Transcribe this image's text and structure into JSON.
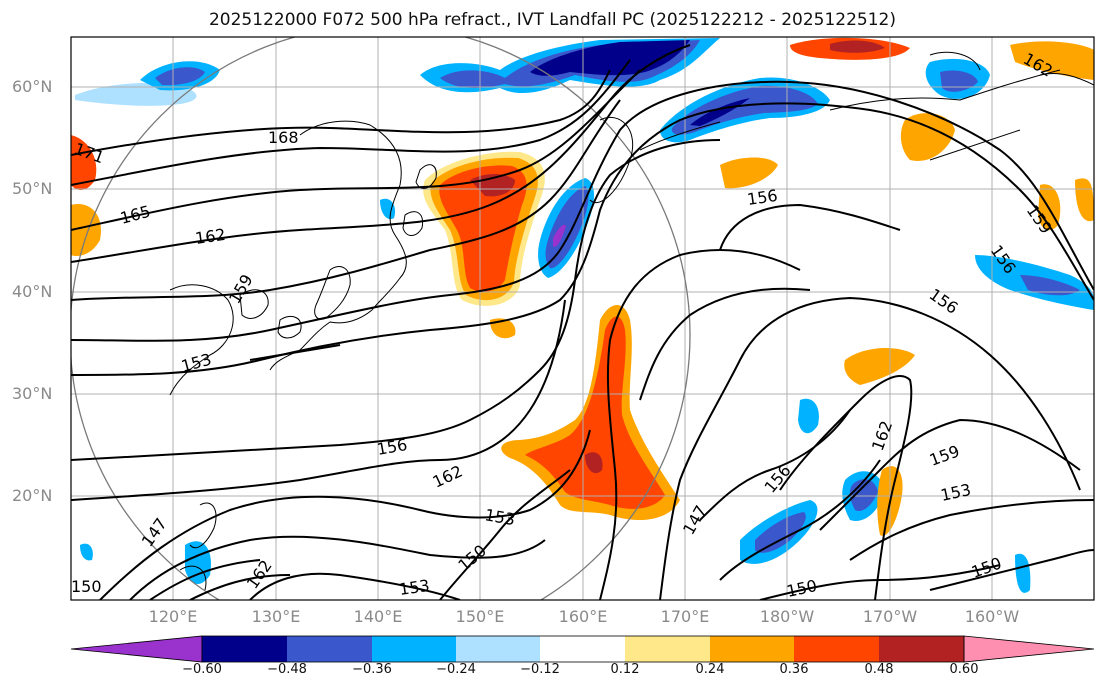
{
  "title": "2025122000 F072 500 hPa refract., IVT Landfall PC (2025122212 - 2025122512)",
  "lat_labels": [
    "60°N",
    "50°N",
    "40°N",
    "30°N",
    "20°N"
  ],
  "lon_labels": [
    "120°E",
    "130°E",
    "140°E",
    "150°E",
    "160°E",
    "170°E",
    "180°W",
    "170°W",
    "160°W"
  ],
  "contour_labels": [
    "171",
    "168",
    "165",
    "162",
    "159",
    "153",
    "156",
    "162",
    "153",
    "150",
    "147",
    "150",
    "162",
    "153",
    "156",
    "156",
    "159",
    "156",
    "162",
    "159",
    "153",
    "150",
    "150",
    "147",
    "156",
    "162"
  ],
  "colorbar": {
    "ticks": [
      "−0.60",
      "−0.48",
      "−0.36",
      "−0.24",
      "−0.12",
      "0.12",
      "0.24",
      "0.36",
      "0.48",
      "0.60"
    ],
    "colors": [
      "#9a32cd",
      "#00008b",
      "#3a57cc",
      "#00b2ff",
      "#aee0ff",
      "#ffffff",
      "#ffe88a",
      "#ffa500",
      "#ff4500",
      "#b22222",
      "#ff8fb0"
    ]
  }
}
